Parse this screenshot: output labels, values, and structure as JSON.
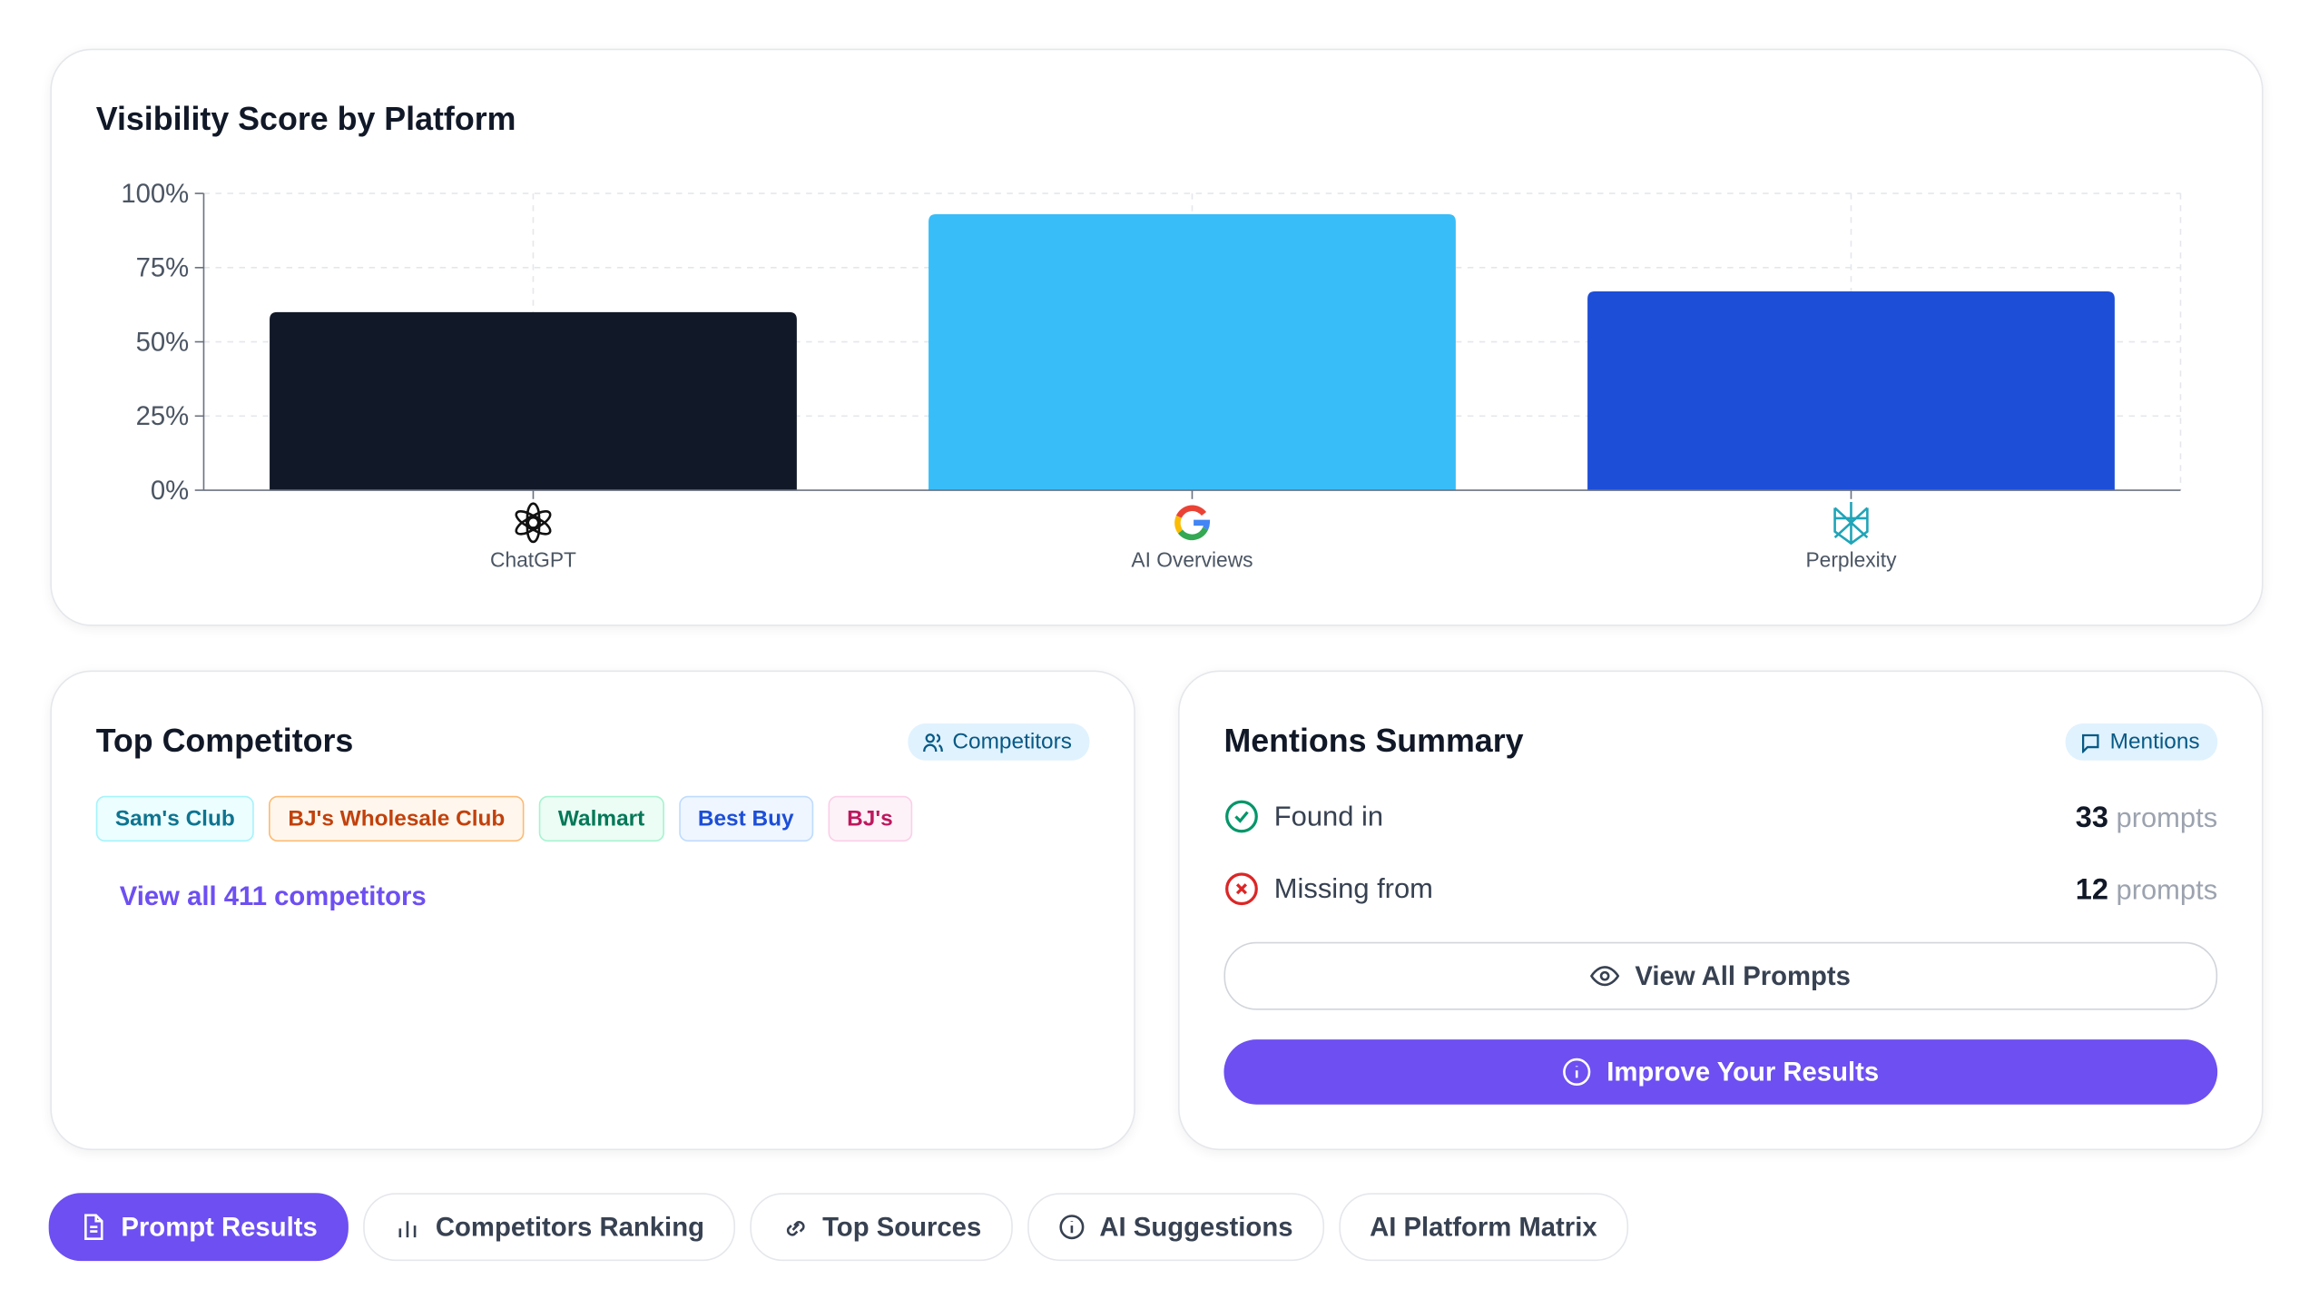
{
  "chart_data": {
    "type": "bar",
    "title": "Visibility Score by Platform",
    "categories": [
      "ChatGPT",
      "AI Overviews",
      "Perplexity"
    ],
    "values": [
      60,
      93,
      67
    ],
    "colors": [
      "#111827",
      "#38bdf8",
      "#1d4ed8"
    ],
    "ylim": [
      0,
      100
    ],
    "yticks": [
      {
        "value": 0,
        "label": "0%"
      },
      {
        "value": 25,
        "label": "25%"
      },
      {
        "value": 50,
        "label": "50%"
      },
      {
        "value": 75,
        "label": "75%"
      },
      {
        "value": 100,
        "label": "100%"
      }
    ],
    "grid": true
  },
  "competitors": {
    "title": "Top Competitors",
    "badge": "Competitors",
    "tags": [
      "Sam's Club",
      "BJ's Wholesale Club",
      "Walmart",
      "Best Buy",
      "BJ's"
    ],
    "link": "View all 411 competitors"
  },
  "mentions": {
    "title": "Mentions Summary",
    "badge": "Mentions",
    "rows": [
      {
        "label": "Found in",
        "count": "33",
        "unit": "prompts"
      },
      {
        "label": "Missing from",
        "count": "12",
        "unit": "prompts"
      }
    ],
    "view_button": "View All Prompts",
    "improve_button": "Improve Your Results"
  },
  "tabs": [
    "Prompt Results",
    "Competitors Ranking",
    "Top Sources",
    "AI Suggestions",
    "AI Platform Matrix"
  ]
}
